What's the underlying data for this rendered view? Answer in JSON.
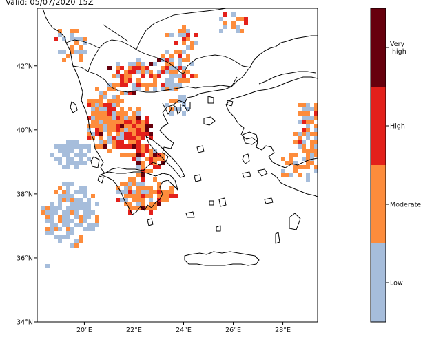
{
  "header": {
    "valid_label": "Valid: 05/07/2020 15Z"
  },
  "map": {
    "lat_ticks": [
      "42°N",
      "40°N",
      "38°N",
      "36°N",
      "34°N"
    ],
    "lon_ticks": [
      "20°E",
      "22°E",
      "24°E",
      "26°E",
      "28°E"
    ],
    "lat_values": [
      42,
      40,
      38,
      36,
      34
    ],
    "lon_values": [
      20,
      22,
      24,
      26,
      28
    ],
    "extent": {
      "lon_min": 18.1,
      "lon_max": 29.4,
      "lat_min": 34,
      "lat_max": 43.8
    },
    "coastline_color": "#000000"
  },
  "colorbar": {
    "title": "",
    "levels": [
      {
        "label": "Very high",
        "label_lines": [
          "Very",
          "high"
        ],
        "color": "#67000d"
      },
      {
        "label": "High",
        "label_lines": [
          "High"
        ],
        "color": "#e3201b"
      },
      {
        "label": "Moderate",
        "label_lines": [
          "Moderate"
        ],
        "color": "#fd8c3c"
      },
      {
        "label": "Low",
        "label_lines": [
          "Low"
        ],
        "color": "#a6bddb"
      }
    ]
  },
  "risk_colors": {
    "low": "#a6bddb",
    "moderate": "#fd8c3c",
    "high": "#e3201b",
    "very_high": "#67000d"
  }
}
